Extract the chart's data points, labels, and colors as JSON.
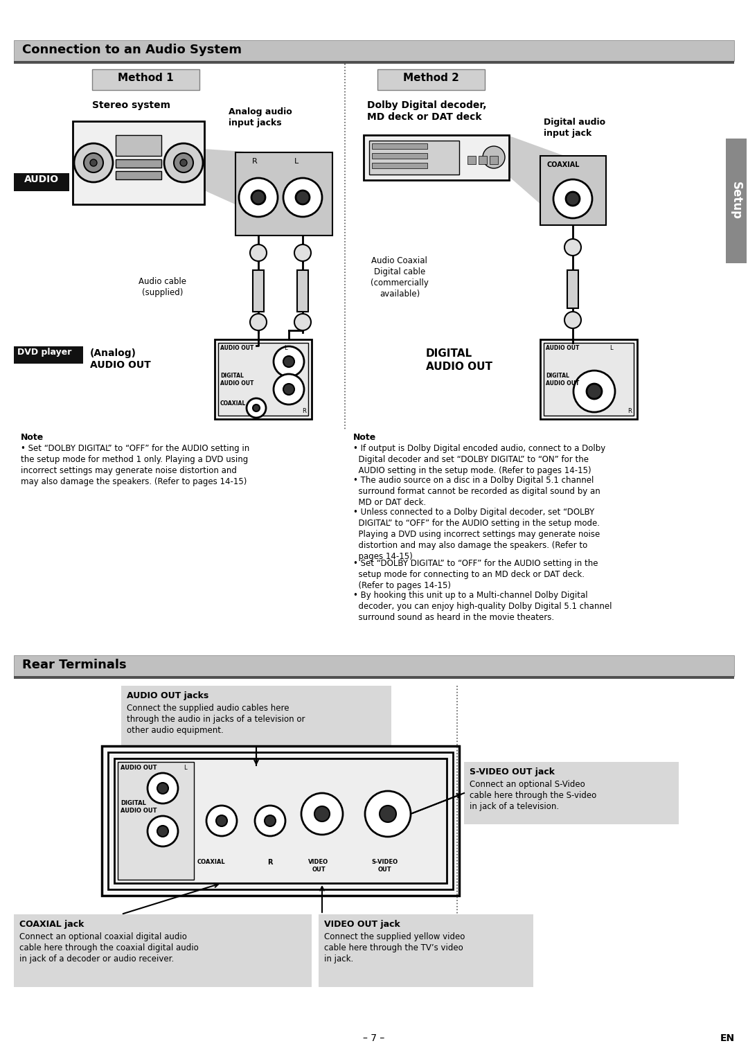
{
  "page_bg": "#ffffff",
  "header1_text": "Connection to an Audio System",
  "header2_text": "Rear Terminals",
  "method1_text": "Method 1",
  "method2_text": "Method 2",
  "setup_tab_text": "Setup",
  "audio_label_text": "AUDIO",
  "dvdplayer_label_text": "DVD player",
  "method1_subtitle": "Stereo system",
  "method1_analog_label": "Analog audio\ninput jacks",
  "method1_cable_label": "Audio cable\n(supplied)",
  "method1_analog_out_label": "(Analog)\nAUDIO OUT",
  "method2_subtitle": "Dolby Digital decoder,\nMD deck or DAT deck",
  "method2_digital_label": "Digital audio\ninput jack",
  "method2_cable_label": "Audio Coaxial\nDigital cable\n(commercially\navailable)",
  "method2_digital_out_label": "DIGITAL\nAUDIO OUT",
  "note1_title": "Note",
  "note1_bullet": "Set “DOLBY DIGITAL” to “OFF” for the AUDIO setting in\nthe setup mode for method 1 only. Playing a DVD using\nincorrect settings may generate noise distortion and\nmay also damage the speakers. (Refer to pages 14-15)",
  "note2_title": "Note",
  "note2_b1": "• If output is Dolby Digital encoded audio, connect to a Dolby\n  Digital decoder and set “DOLBY DIGITAL” to “ON” for the\n  AUDIO setting in the setup mode. (Refer to pages 14-15)",
  "note2_b2": "• The audio source on a disc in a Dolby Digital 5.1 channel\n  surround format cannot be recorded as digital sound by an\n  MD or DAT deck.",
  "note2_b3": "• Unless connected to a Dolby Digital decoder, set “DOLBY\n  DIGITAL” to “OFF” for the AUDIO setting in the setup mode.\n  Playing a DVD using incorrect settings may generate noise\n  distortion and may also damage the speakers. (Refer to\n  pages 14-15)",
  "note2_b4": "• Set “DOLBY DIGITAL” to “OFF” for the AUDIO setting in the\n  setup mode for connecting to an MD deck or DAT deck.\n  (Refer to pages 14-15)",
  "note2_b5": "• By hooking this unit up to a Multi-channel Dolby Digital\n  decoder, you can enjoy high-quality Dolby Digital 5.1 channel\n  surround sound as heard in the movie theaters.",
  "rear_audio_out_title": "AUDIO OUT jacks",
  "rear_audio_out_desc": "Connect the supplied audio cables here\nthrough the audio in jacks of a television or\nother audio equipment.",
  "rear_coaxial_title": "COAXIAL jack",
  "rear_coaxial_desc": "Connect an optional coaxial digital audio\ncable here through the coaxial digital audio\nin jack of a decoder or audio receiver.",
  "rear_video_out_title": "VIDEO OUT jack",
  "rear_video_out_desc": "Connect the supplied yellow video\ncable here through the TV’s video\nin jack.",
  "rear_svideo_title": "S-VIDEO OUT jack",
  "rear_svideo_desc": "Connect an optional S-Video\ncable here through the S-video\nin jack of a television.",
  "page_number": "– 7 –",
  "en_label": "EN"
}
